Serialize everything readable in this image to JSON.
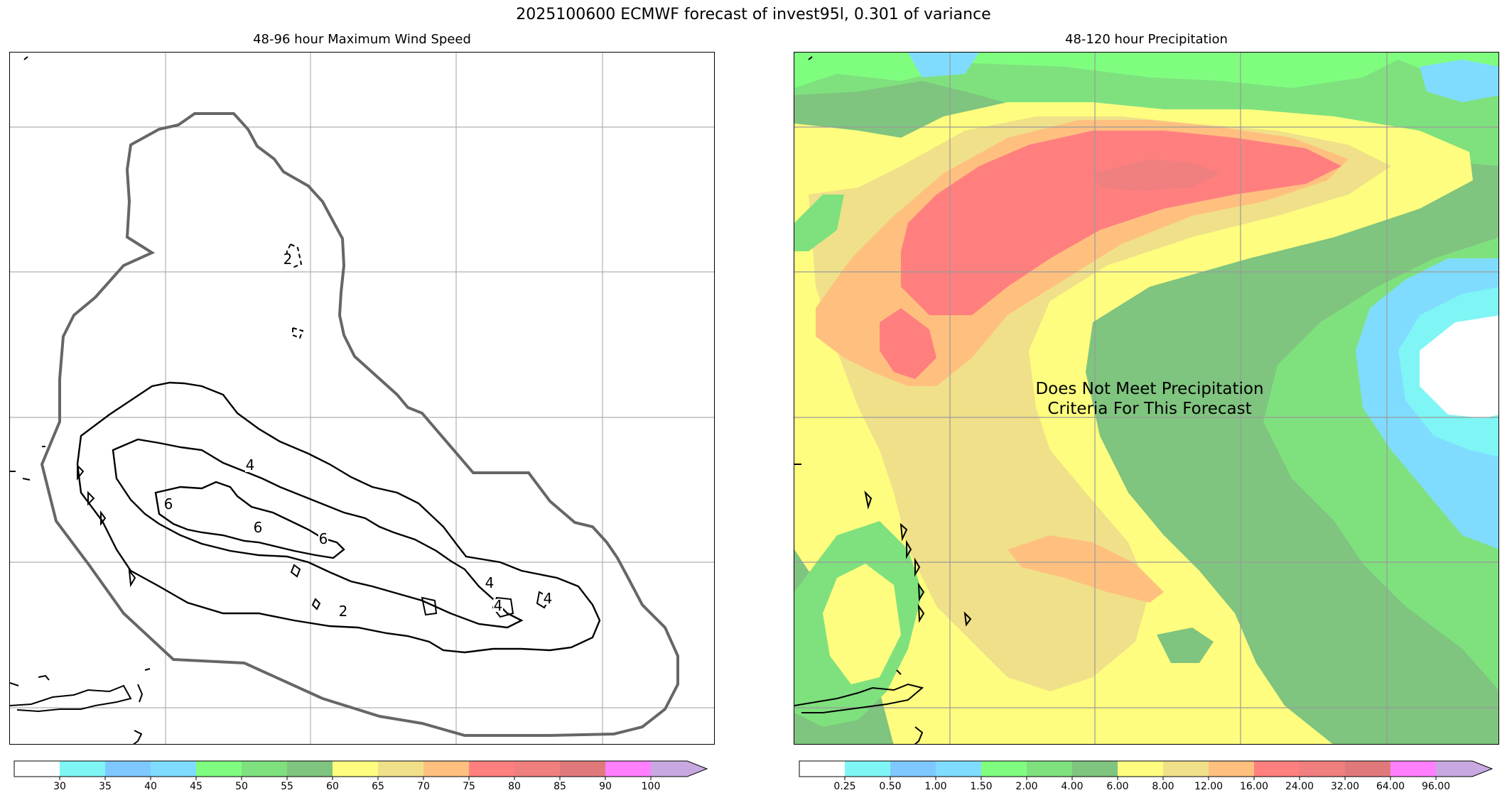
{
  "figure": {
    "title": "2025100600 ECMWF forecast of invest95l, 0.301 of variance"
  },
  "left_panel": {
    "subtitle": "48-96 hour Maximum Wind Speed",
    "contour_labels": [
      "2",
      "4",
      "6",
      "6",
      "6",
      "4",
      "4",
      "4",
      "2"
    ],
    "colorbar": {
      "ticks": [
        "30",
        "35",
        "40",
        "45",
        "50",
        "55",
        "60",
        "65",
        "70",
        "75",
        "80",
        "85",
        "90",
        "100"
      ],
      "colors": [
        "#ffffff",
        "#7ff5f5",
        "#7fc8ff",
        "#7fdcff",
        "#7ffd7f",
        "#7ee17e",
        "#7fc47f",
        "#fffd7f",
        "#f0e08a",
        "#ffc07f",
        "#ff7f7f",
        "#f07f7f",
        "#e07a7a",
        "#ff7fff",
        "#c8a8e0"
      ]
    }
  },
  "right_panel": {
    "subtitle": "48-120 hour Precipitation",
    "note": "Does Not Meet Precipitation Criteria For This Forecast",
    "note_line1": "Does Not Meet Precipitation",
    "note_line2": "Criteria For This Forecast",
    "colorbar": {
      "ticks": [
        "0.25",
        "0.50",
        "1.00",
        "1.50",
        "2.00",
        "4.00",
        "6.00",
        "8.00",
        "12.00",
        "16.00",
        "24.00",
        "32.00",
        "64.00",
        "96.00"
      ],
      "colors": [
        "#ffffff",
        "#7ff5f5",
        "#7fc8ff",
        "#7fdcff",
        "#7ffd7f",
        "#7ee17e",
        "#7fc47f",
        "#fffd7f",
        "#f0e08a",
        "#ffc07f",
        "#ff7f7f",
        "#f07f7f",
        "#e07a7a",
        "#ff7fff",
        "#c8a8e0"
      ]
    }
  }
}
